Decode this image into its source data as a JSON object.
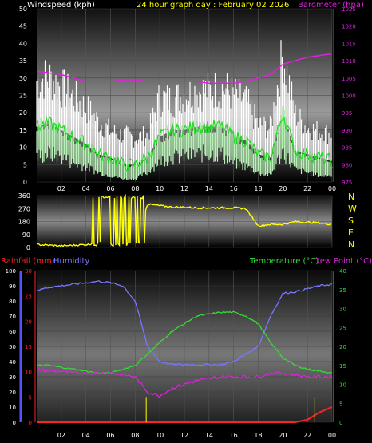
{
  "colors": {
    "background": "#000000",
    "windspeed": "#ffffff",
    "windspeed_avg": "#b8f0b8",
    "windspeed_mean": "#22dd22",
    "barometer": "#dd22dd",
    "direction": "#ffff00",
    "rainfall": "#ff2222",
    "humidity": "#7777ff",
    "temperature": "#33dd33",
    "dewpoint": "#dd22dd",
    "title": "#ffff00",
    "label_white": "#ffffff",
    "axis_blue": "#5555ff"
  },
  "chart_data": [
    {
      "type": "line",
      "panel": "wind",
      "title": "24 hour graph day : February 02 2026",
      "left_label": "Windspeed (kph)",
      "right_label": "Barometer (hpa)",
      "ylim": [
        0,
        50
      ],
      "y2lim": [
        975,
        1025
      ],
      "yticks": [
        "0",
        "5",
        "10",
        "15",
        "20",
        "25",
        "30",
        "35",
        "40",
        "45",
        "50"
      ],
      "y2ticks": [
        "975",
        "980",
        "985",
        "990",
        "995",
        "1000",
        "1005",
        "1010",
        "1015",
        "1020",
        "1025"
      ],
      "xticks": [
        "02",
        "04",
        "06",
        "08",
        "10",
        "12",
        "14",
        "16",
        "18",
        "20",
        "22",
        "00"
      ],
      "x_hours": [
        0,
        1,
        2,
        3,
        4,
        5,
        6,
        7,
        8,
        9,
        10,
        11,
        12,
        13,
        14,
        15,
        16,
        17,
        18,
        19,
        20,
        21,
        22,
        23,
        24
      ],
      "series": [
        {
          "role": "gust",
          "values": [
            30,
            31,
            28,
            25,
            22,
            18,
            15,
            14,
            13,
            14,
            25,
            24,
            26,
            27,
            27,
            28,
            26,
            24,
            17,
            16,
            38,
            20,
            16,
            15,
            14
          ]
        },
        {
          "role": "mean",
          "values": [
            16,
            17,
            15,
            13,
            11,
            8,
            7,
            5,
            5,
            7,
            13,
            15,
            15,
            16,
            16,
            16,
            13,
            12,
            8,
            7,
            20,
            9,
            8,
            7,
            6
          ]
        },
        {
          "role": "low",
          "values": [
            8,
            9,
            8,
            6,
            5,
            3,
            2,
            1,
            1,
            3,
            7,
            8,
            8,
            9,
            9,
            9,
            6,
            5,
            3,
            2,
            10,
            4,
            3,
            2,
            2
          ]
        },
        {
          "role": "barometer",
          "values": [
            1007,
            1006.5,
            1006,
            1005,
            1004,
            1004,
            1004,
            1004.5,
            1004.5,
            1004,
            1004,
            1004,
            1004,
            1004,
            1003.5,
            1003.5,
            1003.5,
            1004,
            1005,
            1006,
            1009,
            1010,
            1011,
            1011.5,
            1012
          ]
        }
      ]
    },
    {
      "type": "line",
      "panel": "direction",
      "ylim": [
        0,
        360
      ],
      "yticks": [
        "0",
        "90",
        "180",
        "270",
        "360"
      ],
      "compass_labels": [
        "N",
        "W",
        "S",
        "E",
        "N"
      ],
      "x_hours": [
        0,
        1,
        2,
        3,
        4,
        5,
        6,
        7,
        8,
        9,
        10,
        11,
        12,
        13,
        14,
        15,
        16,
        17,
        18,
        19,
        20,
        21,
        22,
        23,
        24
      ],
      "series": [
        {
          "role": "direction",
          "values": [
            20,
            15,
            10,
            15,
            20,
            25,
            60,
            40,
            50,
            300,
            290,
            280,
            280,
            275,
            275,
            275,
            275,
            270,
            150,
            160,
            160,
            180,
            175,
            170,
            160
          ]
        }
      ]
    },
    {
      "type": "line",
      "panel": "lower",
      "left_label_rain": "Rainfall (mm)",
      "left_label_hum": "Humidity",
      "right_label_temp": "Temperature (°C)",
      "right_label_dew": "Dew Point (°C)",
      "hum_ylim": [
        0,
        100
      ],
      "hum_ticks": [
        "0",
        "10",
        "20",
        "30",
        "40",
        "50",
        "60",
        "70",
        "80",
        "90",
        "100"
      ],
      "rain_ylim": [
        0,
        30
      ],
      "rain_ticks": [
        "0",
        "5",
        "10",
        "15",
        "20",
        "25",
        "30"
      ],
      "temp_ylim": [
        0,
        40
      ],
      "temp_ticks": [
        "0",
        "5",
        "10",
        "15",
        "20",
        "25",
        "30",
        "35",
        "40"
      ],
      "xticks": [
        "02",
        "04",
        "06",
        "08",
        "10",
        "12",
        "14",
        "16",
        "18",
        "20",
        "22",
        "00"
      ],
      "x_hours": [
        0,
        1,
        2,
        3,
        4,
        5,
        6,
        7,
        8,
        9,
        10,
        11,
        12,
        13,
        14,
        15,
        16,
        17,
        18,
        19,
        20,
        21,
        22,
        23,
        24
      ],
      "series": [
        {
          "role": "humidity",
          "values": [
            87,
            89,
            90,
            91,
            92,
            93,
            92,
            90,
            80,
            50,
            40,
            38,
            38,
            38,
            38,
            38,
            40,
            45,
            50,
            70,
            85,
            86,
            88,
            90,
            91
          ]
        },
        {
          "role": "temperature",
          "values": [
            15,
            15,
            14.5,
            14,
            13.5,
            13,
            13,
            14,
            15,
            18,
            21,
            24,
            26,
            28,
            28.5,
            29,
            29,
            28,
            26,
            21,
            17,
            15,
            14,
            13.5,
            13
          ]
        },
        {
          "role": "dewpoint",
          "values": [
            14,
            13.5,
            13.5,
            13,
            13,
            13,
            13,
            12.5,
            12,
            8,
            7,
            9,
            10,
            11,
            11.5,
            12,
            12,
            12,
            12,
            13,
            13,
            12.5,
            12,
            12,
            12
          ]
        },
        {
          "role": "rainfall",
          "values": [
            0,
            0,
            0,
            0,
            0,
            0,
            0,
            0,
            0,
            0,
            0,
            0,
            0,
            0,
            0,
            0,
            0,
            0,
            0,
            0,
            0,
            0,
            0.5,
            2,
            3
          ]
        }
      ],
      "rain_spikes": [
        {
          "x": 8.9,
          "v": 5
        },
        {
          "x": 22.6,
          "v": 5
        }
      ]
    }
  ]
}
